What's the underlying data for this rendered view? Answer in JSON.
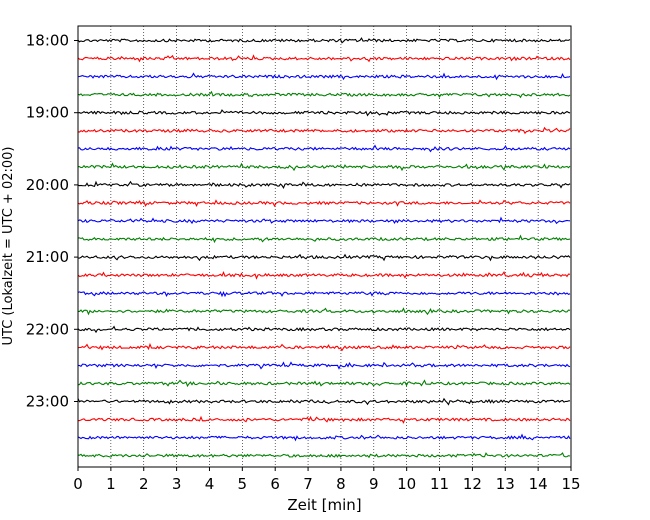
{
  "chart_data": {
    "type": "line",
    "title": "",
    "xlabel": "Zeit  [min]",
    "ylabel": "UTC (Lokalzeit = UTC + 02:00)",
    "xlim": [
      0,
      15
    ],
    "xticks": [
      0,
      1,
      2,
      3,
      4,
      5,
      6,
      7,
      8,
      9,
      10,
      11,
      12,
      13,
      14,
      15
    ],
    "xtick_labels": [
      "0",
      "1",
      "2",
      "3",
      "4",
      "5",
      "6",
      "7",
      "8",
      "9",
      "10",
      "11",
      "12",
      "13",
      "14",
      "15"
    ],
    "ytick_labels": [
      "18:00",
      "19:00",
      "20:00",
      "21:00",
      "22:00",
      "23:00"
    ],
    "trace_interval_min": 15,
    "x_grid": "dotted",
    "colors_cycle": [
      "#000000",
      "#ff0000",
      "#0000ff",
      "#008000"
    ],
    "traces": [
      {
        "start": "18:00",
        "color": "#000000"
      },
      {
        "start": "18:15",
        "color": "#ff0000"
      },
      {
        "start": "18:30",
        "color": "#0000ff"
      },
      {
        "start": "18:45",
        "color": "#008000"
      },
      {
        "start": "19:00",
        "color": "#000000"
      },
      {
        "start": "19:15",
        "color": "#ff0000"
      },
      {
        "start": "19:30",
        "color": "#0000ff"
      },
      {
        "start": "19:45",
        "color": "#008000"
      },
      {
        "start": "20:00",
        "color": "#000000"
      },
      {
        "start": "20:15",
        "color": "#ff0000"
      },
      {
        "start": "20:30",
        "color": "#0000ff"
      },
      {
        "start": "20:45",
        "color": "#008000"
      },
      {
        "start": "21:00",
        "color": "#000000"
      },
      {
        "start": "21:15",
        "color": "#ff0000"
      },
      {
        "start": "21:30",
        "color": "#0000ff"
      },
      {
        "start": "21:45",
        "color": "#008000"
      },
      {
        "start": "22:00",
        "color": "#000000"
      },
      {
        "start": "22:15",
        "color": "#ff0000"
      },
      {
        "start": "22:30",
        "color": "#0000ff"
      },
      {
        "start": "22:45",
        "color": "#008000"
      },
      {
        "start": "23:00",
        "color": "#000000"
      },
      {
        "start": "23:15",
        "color": "#ff0000"
      },
      {
        "start": "23:30",
        "color": "#0000ff"
      },
      {
        "start": "23:45",
        "color": "#008000"
      }
    ]
  }
}
